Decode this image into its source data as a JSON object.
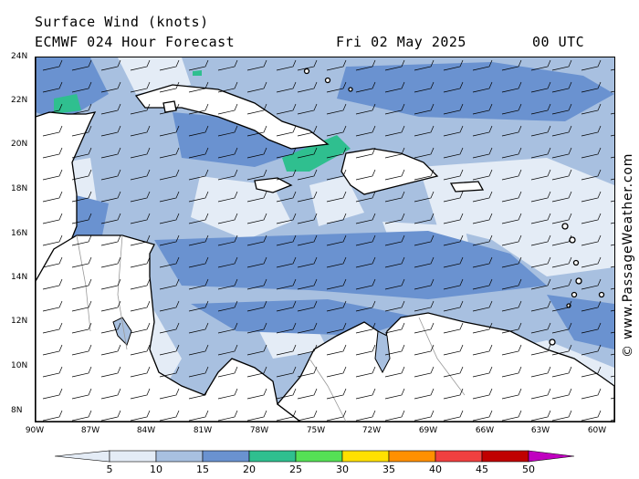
{
  "title": {
    "line1": "Surface Wind (knots)",
    "line2": "ECMWF 024 Hour Forecast",
    "date": "Fri 02 May 2025",
    "time": "00 UTC"
  },
  "copyright": "© www.PassageWeather.com",
  "map": {
    "lat_labels": [
      "24N",
      "22N",
      "20N",
      "18N",
      "16N",
      "14N",
      "12N",
      "10N",
      "8N"
    ],
    "lon_labels": [
      "90W",
      "87W",
      "84W",
      "81W",
      "78W",
      "75W",
      "72W",
      "69W",
      "66W",
      "63W",
      "60W"
    ],
    "land_color": "#ffffff",
    "coast_color": "#000000",
    "border_color": "#999999"
  },
  "colorbar": {
    "ticks": [
      "5",
      "10",
      "15",
      "20",
      "25",
      "30",
      "35",
      "40",
      "45",
      "50"
    ],
    "colors": [
      "#e4ecf6",
      "#a8c0e0",
      "#6a92d0",
      "#2fbf8f",
      "#55e055",
      "#ffe000",
      "#ff9000",
      "#f04040",
      "#c00000",
      "#c000c0"
    ]
  }
}
